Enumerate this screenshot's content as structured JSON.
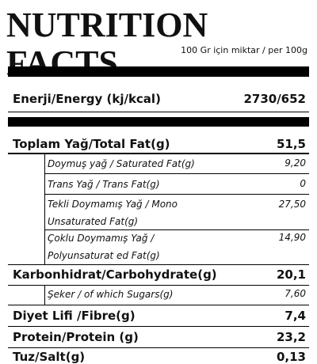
{
  "header": {
    "title": "NUTRITION FACTS",
    "subtitle": "100 Gr için miktar / per 100g"
  },
  "energy": {
    "label": "Enerji/Energy (kj/kcal)",
    "value": "2730/652"
  },
  "rows": [
    {
      "label": "Toplam Yağ/Total Fat(g)",
      "value": "51,5"
    },
    {
      "label": "Doymuş yağ / Saturated Fat(g)",
      "value": "9,20"
    },
    {
      "label": "Trans Yağ / Trans Fat(g)",
      "value": "0"
    },
    {
      "label": [
        "Tekli Doymamış Yağ / Mono",
        "Unsaturated Fat(g)"
      ],
      "value": "27,50"
    },
    {
      "label": [
        "Çoklu Doymamış Yağ /",
        "Polyunsaturat ed Fat(g)"
      ],
      "value": "14,90"
    },
    {
      "label": "Karbonhidrat/Carbohydrate(g)",
      "value": "20,1"
    },
    {
      "label": "Şeker / of which Sugars(g)",
      "value": "7,60"
    },
    {
      "label": "Diyet Lifi /Fibre(g)",
      "value": "7,4"
    },
    {
      "label": "Protein/Protein (g)",
      "value": "23,2"
    },
    {
      "label": "Tuz/Salt(g)",
      "value": "0,13"
    }
  ]
}
